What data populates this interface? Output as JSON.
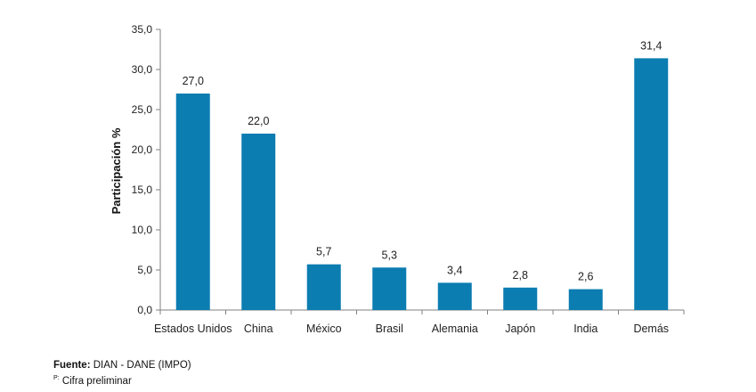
{
  "chart_data": {
    "type": "bar",
    "categories": [
      "Estados Unidos",
      "China",
      "México",
      "Brasil",
      "Alemania",
      "Japón",
      "India",
      "Demás"
    ],
    "values": [
      27.0,
      22.0,
      5.7,
      5.3,
      3.4,
      2.8,
      2.6,
      31.4
    ],
    "data_labels": [
      "27,0",
      "22,0",
      "5,7",
      "5,3",
      "3,4",
      "2,8",
      "2,6",
      "31,4"
    ],
    "ylabel": "Participación %",
    "ylim": [
      0,
      35
    ],
    "yticks": [
      0,
      5,
      10,
      15,
      20,
      25,
      30,
      35
    ],
    "ytick_labels": [
      "0,0",
      "5,0",
      "10,0",
      "15,0",
      "20,0",
      "25,0",
      "30,0",
      "35,0"
    ],
    "grid": false,
    "bar_color": "#0b7db1"
  },
  "source": {
    "label": "Fuente:",
    "text": " DIAN - DANE (IMPO)"
  },
  "footnote": {
    "marker": "P:",
    "text": " Cifra preliminar"
  }
}
